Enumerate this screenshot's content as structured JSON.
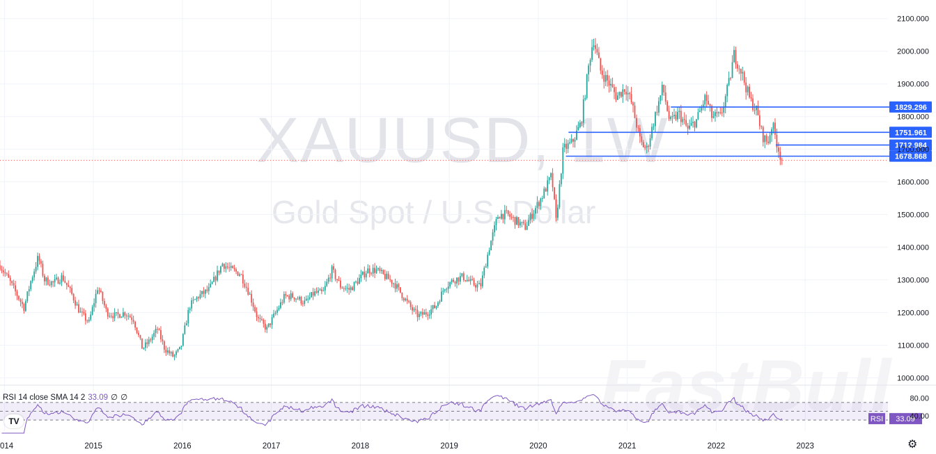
{
  "watermark": {
    "symbol": "XAUUSD, 1W",
    "name": "Gold Spot / U.S. Dollar",
    "brand": "FastBull"
  },
  "colors": {
    "up": "#26a69a",
    "down": "#ef5350",
    "level": "#2962ff",
    "rsi": "#7e57c2",
    "grid": "#f0f3fa",
    "current_price_line": "#ef5350"
  },
  "icons": {
    "logo": "tradingview-logo-icon",
    "settings": "gear-icon"
  },
  "rsi_legend": {
    "label": "RSI 14 close SMA 14 2",
    "value": "33.09",
    "extra1": "∅",
    "extra2": "∅"
  },
  "chart_data": {
    "type": "candlestick",
    "title": "",
    "timeframe": "1W",
    "grid": true,
    "x_ticks": [
      "2014",
      "2015",
      "2016",
      "2017",
      "2018",
      "2019",
      "2020",
      "2021",
      "2022",
      "2023"
    ],
    "y_ticks": [
      "1000.000",
      "1100.000",
      "1200.000",
      "1300.000",
      "1400.000",
      "1500.000",
      "1600.000",
      "1700.000",
      "1800.000",
      "1900.000",
      "2000.000",
      "2100.000"
    ],
    "ylim": [
      978,
      2110
    ],
    "xlim": [
      2013.95,
      2023.93
    ],
    "series": [
      {
        "name": "XAUUSD",
        "approx_close": [
          [
            2013.95,
            1345
          ],
          [
            2014.05,
            1300
          ],
          [
            2014.15,
            1250
          ],
          [
            2014.22,
            1215
          ],
          [
            2014.3,
            1300
          ],
          [
            2014.38,
            1370
          ],
          [
            2014.45,
            1300
          ],
          [
            2014.55,
            1290
          ],
          [
            2014.65,
            1310
          ],
          [
            2014.75,
            1260
          ],
          [
            2014.85,
            1200
          ],
          [
            2014.95,
            1170
          ],
          [
            2015.05,
            1280
          ],
          [
            2015.15,
            1200
          ],
          [
            2015.25,
            1190
          ],
          [
            2015.35,
            1200
          ],
          [
            2015.45,
            1180
          ],
          [
            2015.55,
            1090
          ],
          [
            2015.62,
            1110
          ],
          [
            2015.72,
            1150
          ],
          [
            2015.8,
            1090
          ],
          [
            2015.9,
            1065
          ],
          [
            2015.98,
            1090
          ],
          [
            2016.08,
            1220
          ],
          [
            2016.18,
            1250
          ],
          [
            2016.3,
            1270
          ],
          [
            2016.45,
            1350
          ],
          [
            2016.55,
            1330
          ],
          [
            2016.65,
            1320
          ],
          [
            2016.75,
            1260
          ],
          [
            2016.85,
            1180
          ],
          [
            2016.95,
            1150
          ],
          [
            2017.05,
            1200
          ],
          [
            2017.15,
            1250
          ],
          [
            2017.25,
            1250
          ],
          [
            2017.38,
            1230
          ],
          [
            2017.48,
            1260
          ],
          [
            2017.58,
            1260
          ],
          [
            2017.68,
            1330
          ],
          [
            2017.78,
            1280
          ],
          [
            2017.88,
            1270
          ],
          [
            2017.98,
            1300
          ],
          [
            2018.08,
            1330
          ],
          [
            2018.18,
            1330
          ],
          [
            2018.28,
            1310
          ],
          [
            2018.38,
            1290
          ],
          [
            2018.48,
            1250
          ],
          [
            2018.58,
            1210
          ],
          [
            2018.65,
            1190
          ],
          [
            2018.75,
            1200
          ],
          [
            2018.85,
            1220
          ],
          [
            2018.95,
            1280
          ],
          [
            2019.05,
            1300
          ],
          [
            2019.15,
            1310
          ],
          [
            2019.25,
            1290
          ],
          [
            2019.35,
            1280
          ],
          [
            2019.45,
            1400
          ],
          [
            2019.55,
            1500
          ],
          [
            2019.65,
            1500
          ],
          [
            2019.75,
            1480
          ],
          [
            2019.85,
            1460
          ],
          [
            2019.95,
            1510
          ],
          [
            2020.05,
            1560
          ],
          [
            2020.15,
            1620
          ],
          [
            2020.2,
            1480
          ],
          [
            2020.28,
            1700
          ],
          [
            2020.38,
            1720
          ],
          [
            2020.48,
            1780
          ],
          [
            2020.58,
            1980
          ],
          [
            2020.62,
            2040
          ],
          [
            2020.7,
            1940
          ],
          [
            2020.8,
            1900
          ],
          [
            2020.88,
            1860
          ],
          [
            2020.98,
            1890
          ],
          [
            2021.05,
            1840
          ],
          [
            2021.15,
            1720
          ],
          [
            2021.22,
            1700
          ],
          [
            2021.32,
            1810
          ],
          [
            2021.4,
            1890
          ],
          [
            2021.48,
            1780
          ],
          [
            2021.58,
            1810
          ],
          [
            2021.68,
            1760
          ],
          [
            2021.78,
            1790
          ],
          [
            2021.88,
            1860
          ],
          [
            2021.95,
            1800
          ],
          [
            2022.05,
            1800
          ],
          [
            2022.15,
            1910
          ],
          [
            2022.2,
            1990
          ],
          [
            2022.28,
            1940
          ],
          [
            2022.38,
            1850
          ],
          [
            2022.45,
            1820
          ],
          [
            2022.52,
            1740
          ],
          [
            2022.58,
            1720
          ],
          [
            2022.63,
            1780
          ],
          [
            2022.68,
            1720
          ],
          [
            2022.73,
            1670
          ]
        ]
      },
      {
        "name": "RSI 14",
        "last": 33.09,
        "ylim": [
          0,
          100
        ],
        "bands": [
          30,
          50,
          70
        ]
      }
    ],
    "horizontal_levels": [
      {
        "label": "1829.296",
        "value": 1829.296,
        "from_x": 2021.49
      },
      {
        "label": "1751.961",
        "value": 1751.961,
        "from_x": 2020.34
      },
      {
        "label": "1712.984",
        "value": 1712.984,
        "from_x": 2022.67
      },
      {
        "label": "1678.868",
        "value": 1678.868,
        "from_x": 2020.31
      }
    ],
    "current_price": 1666.0,
    "rsi_axis_labels": [
      "80.00",
      "40.00"
    ],
    "rsi_badge": {
      "name": "RSI",
      "value": "33.09"
    }
  }
}
